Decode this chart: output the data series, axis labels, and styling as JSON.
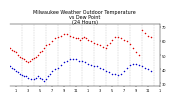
{
  "title": "Milwaukee Weather Outdoor Temperature\nvs Dew Point\n(24 Hours)",
  "title_fontsize": 3.5,
  "background_color": "#ffffff",
  "grid_color": "#aaaaaa",
  "ylim": [
    28,
    72
  ],
  "xlim": [
    0,
    24
  ],
  "yticks": [
    30,
    40,
    50,
    60,
    70
  ],
  "xtick_labels": [
    "1",
    "3",
    "5",
    "7",
    "9",
    "11",
    "1",
    "3",
    "5",
    "7",
    "9",
    "11",
    "1"
  ],
  "xticks": [
    1,
    3,
    5,
    7,
    9,
    11,
    13,
    15,
    17,
    19,
    21,
    23,
    25
  ],
  "temp_x": [
    0.0,
    0.3,
    0.7,
    1.0,
    1.3,
    1.7,
    2.0,
    2.3,
    2.7,
    3.0,
    3.3,
    3.7,
    4.0,
    4.3,
    4.7,
    5.0,
    5.3,
    5.7,
    6.0,
    6.5,
    7.0,
    7.5,
    8.0,
    8.5,
    9.0,
    9.5,
    10.0,
    10.5,
    11.0,
    11.3,
    11.7,
    12.0,
    12.3,
    12.7,
    13.0,
    13.5,
    14.0,
    14.5,
    15.0,
    15.5,
    16.0,
    16.3,
    16.7,
    17.0,
    17.5,
    18.0,
    18.5,
    19.0,
    19.5,
    20.0,
    20.5,
    21.0,
    21.5,
    22.0,
    22.5,
    23.0,
    23.5
  ],
  "temp_y": [
    55,
    54,
    53,
    52,
    50,
    49,
    48,
    47,
    46,
    45,
    46,
    47,
    48,
    49,
    50,
    52,
    53,
    55,
    57,
    58,
    60,
    62,
    63,
    64,
    65,
    65,
    64,
    63,
    62,
    62,
    61,
    62,
    63,
    62,
    61,
    60,
    59,
    58,
    57,
    56,
    55,
    57,
    59,
    61,
    63,
    63,
    62,
    61,
    60,
    58,
    55,
    52,
    50,
    68,
    66,
    64,
    63
  ],
  "dew_x": [
    0.0,
    0.3,
    0.7,
    1.0,
    1.3,
    1.7,
    2.0,
    2.3,
    2.7,
    3.0,
    3.5,
    4.0,
    4.3,
    4.7,
    5.0,
    5.3,
    5.7,
    6.0,
    6.3,
    6.7,
    7.0,
    7.5,
    8.0,
    8.5,
    9.0,
    9.5,
    10.0,
    10.5,
    11.0,
    11.5,
    12.0,
    12.5,
    13.0,
    13.5,
    14.0,
    14.5,
    15.0,
    15.5,
    16.0,
    16.5,
    17.0,
    17.5,
    18.0,
    18.5,
    19.0,
    19.5,
    20.0,
    20.5,
    21.0,
    21.5,
    22.0,
    22.5,
    23.0,
    23.5
  ],
  "dew_y": [
    42,
    41,
    40,
    39,
    38,
    37,
    36,
    35,
    35,
    34,
    33,
    33,
    34,
    35,
    34,
    33,
    32,
    33,
    35,
    37,
    39,
    40,
    41,
    43,
    45,
    46,
    47,
    47,
    47,
    46,
    46,
    45,
    44,
    43,
    42,
    42,
    41,
    40,
    39,
    38,
    37,
    37,
    36,
    37,
    39,
    41,
    43,
    44,
    44,
    43,
    42,
    41,
    40,
    39
  ],
  "temp_color": "#dd0000",
  "dew_color": "#0000cc",
  "marker_size": 1.2,
  "vgrid_positions": [
    2,
    4,
    6,
    8,
    10,
    12,
    14,
    16,
    18,
    20,
    22,
    24
  ]
}
